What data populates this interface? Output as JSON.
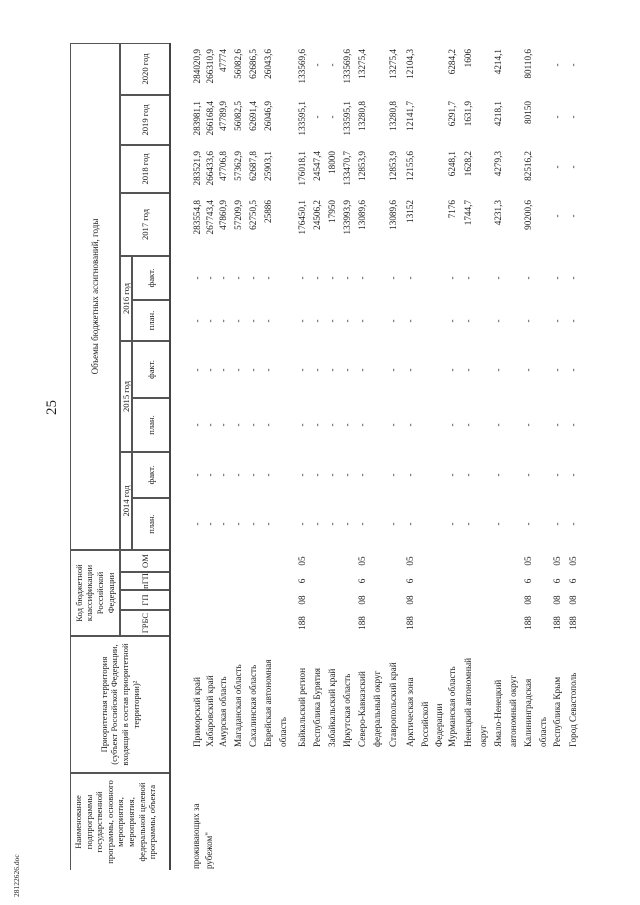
{
  "page_number": "25",
  "footer_file": "28122626.doc",
  "header": {
    "name_col": "Наименование подпрограммы государственной программы, основного мероприятия, мероприятия, федеральной целевой программы, объекта",
    "territory_col": "Приоритетная территория (субъект Российской Федерации, входящий в состав приоритетной территории)²",
    "code_col": "Код бюджетной классификации Российской Федерации",
    "code_sub": [
      "ГРБС",
      "ГП",
      "пГП",
      "ОМ"
    ],
    "budget_title": "Объемы бюджетных ассигнований, годы",
    "plan_fact_years": [
      "2014 год",
      "2015 год",
      "2016 год"
    ],
    "plan": "план.",
    "fact": "факт.",
    "years": [
      "2017 год",
      "2018 год",
      "2019 год",
      "2020 год"
    ]
  },
  "program_name_fragment": "проживающих за рубежом\"",
  "rows": [
    {
      "territory": [
        "Приморский край"
      ],
      "codes": null,
      "plan_fact": [
        "-",
        "-",
        "-",
        "-",
        "-",
        "-"
      ],
      "values": [
        "283554,8",
        "283521,9",
        "283981,1",
        "284020,9"
      ]
    },
    {
      "territory": [
        "Хабаровский край"
      ],
      "codes": null,
      "plan_fact": [
        "-",
        "-",
        "-",
        "-",
        "-",
        "-"
      ],
      "values": [
        "267743,4",
        "266433,6",
        "266168,4",
        "266310,9"
      ]
    },
    {
      "territory": [
        "Амурская область"
      ],
      "codes": null,
      "plan_fact": [
        "-",
        "-",
        "-",
        "-",
        "-",
        "-"
      ],
      "values": [
        "47860,9",
        "47706,8",
        "47789,9",
        "47774"
      ]
    },
    {
      "territory": [
        "Магаданская область"
      ],
      "codes": null,
      "plan_fact": [
        "-",
        "-",
        "-",
        "-",
        "-",
        "-"
      ],
      "values": [
        "57209,9",
        "57362,9",
        "56082,5",
        "56082,6"
      ]
    },
    {
      "territory": [
        "Сахалинская область"
      ],
      "codes": null,
      "plan_fact": [
        "-",
        "-",
        "-",
        "-",
        "-",
        "-"
      ],
      "values": [
        "62750,5",
        "62687,8",
        "62691,4",
        "62686,5"
      ]
    },
    {
      "territory": [
        "Еврейская автономная",
        "область"
      ],
      "codes": null,
      "plan_fact": [
        "-",
        "-",
        "-",
        "-",
        "-",
        "-"
      ],
      "values": [
        "25886",
        "25903,1",
        "26046,9",
        "26043,6"
      ]
    },
    {
      "territory": [
        "Байкальский регион"
      ],
      "codes": [
        "188",
        "08",
        "6",
        "05"
      ],
      "plan_fact": [
        "-",
        "-",
        "-",
        "-",
        "-",
        "-"
      ],
      "values": [
        "176450,1",
        "176018,1",
        "133595,1",
        "133569,6"
      ]
    },
    {
      "territory": [
        "Республика Бурятия"
      ],
      "codes": null,
      "plan_fact": [
        "-",
        "-",
        "-",
        "-",
        "-",
        "-"
      ],
      "values": [
        "24506,2",
        "24547,4",
        "-",
        "-"
      ]
    },
    {
      "territory": [
        "Забайкальский край"
      ],
      "codes": null,
      "plan_fact": [
        "-",
        "-",
        "-",
        "-",
        "-",
        "-"
      ],
      "values": [
        "17950",
        "18000",
        "-",
        "-"
      ]
    },
    {
      "territory": [
        "Иркутская область"
      ],
      "codes": null,
      "plan_fact": [
        "-",
        "-",
        "-",
        "-",
        "-",
        "-"
      ],
      "values": [
        "133993,9",
        "133470,7",
        "133595,1",
        "133569,6"
      ]
    },
    {
      "territory": [
        "Северо-Кавказский",
        "федеральный округ"
      ],
      "codes": [
        "188",
        "08",
        "6",
        "05"
      ],
      "plan_fact": [
        "-",
        "-",
        "-",
        "-",
        "-",
        "-"
      ],
      "values": [
        "13089,6",
        "12853,9",
        "13280,8",
        "13275,4"
      ]
    },
    {
      "territory": [
        "Ставропольский край"
      ],
      "codes": null,
      "plan_fact": [
        "-",
        "-",
        "-",
        "-",
        "-",
        "-"
      ],
      "values": [
        "13089,6",
        "12853,9",
        "13280,8",
        "13275,4"
      ]
    },
    {
      "territory": [
        "Арктическая зона",
        "Российской",
        "Федерации"
      ],
      "codes": [
        "188",
        "08",
        "6",
        "05"
      ],
      "plan_fact": [
        "-",
        "-",
        "-",
        "-",
        "-",
        "-"
      ],
      "values": [
        "13152",
        "12155,6",
        "12141,7",
        "12104,3"
      ]
    },
    {
      "territory": [
        "Мурманская область"
      ],
      "codes": null,
      "plan_fact": [
        "-",
        "-",
        "-",
        "-",
        "-",
        "-"
      ],
      "values": [
        "7176",
        "6248,1",
        "6291,7",
        "6284,2"
      ]
    },
    {
      "territory": [
        "Ненецкий автономный",
        "округ"
      ],
      "codes": null,
      "plan_fact": [
        "-",
        "-",
        "-",
        "-",
        "-",
        "-"
      ],
      "values": [
        "1744,7",
        "1628,2",
        "1631,9",
        "1606"
      ]
    },
    {
      "territory": [
        "Ямало-Ненецкий",
        "автономный округ"
      ],
      "codes": null,
      "plan_fact": [
        "-",
        "-",
        "-",
        "-",
        "-",
        "-"
      ],
      "values": [
        "4231,3",
        "4279,3",
        "4218,1",
        "4214,1"
      ]
    },
    {
      "territory": [
        "Калининградская",
        "область"
      ],
      "codes": [
        "188",
        "08",
        "6",
        "05"
      ],
      "plan_fact": [
        "-",
        "-",
        "-",
        "-",
        "-",
        "-"
      ],
      "values": [
        "90200,6",
        "82516,2",
        "80150",
        "80110,6"
      ]
    },
    {
      "territory": [
        "Республика Крым"
      ],
      "codes": [
        "188",
        "08",
        "6",
        "05"
      ],
      "plan_fact": [
        "-",
        "-",
        "-",
        "-",
        "-",
        "-"
      ],
      "values": [
        "-",
        "-",
        "-",
        "-"
      ]
    },
    {
      "territory": [
        "Город Севастополь"
      ],
      "codes": [
        "188",
        "08",
        "6",
        "05"
      ],
      "plan_fact": [
        "-",
        "-",
        "-",
        "-",
        "-",
        "-"
      ],
      "values": [
        "-",
        "-",
        "-",
        "-"
      ]
    }
  ]
}
